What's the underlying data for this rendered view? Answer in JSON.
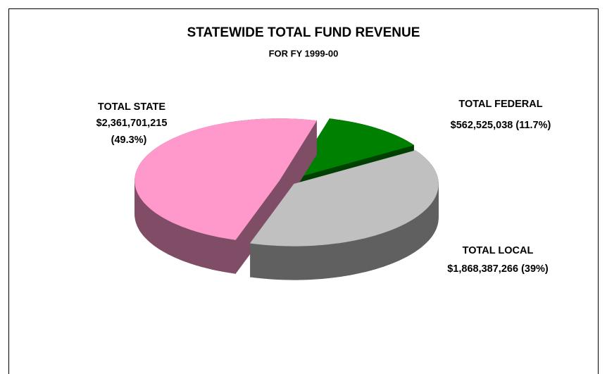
{
  "chart_data": {
    "type": "pie3d",
    "title": "STATEWIDE TOTAL FUND REVENUE",
    "subtitle": "FOR FY 1999-00",
    "categories": [
      "TOTAL FEDERAL",
      "TOTAL LOCAL",
      "TOTAL STATE"
    ],
    "values": [
      562525038,
      1868387266,
      2361701215
    ],
    "value_labels": [
      "$562,525,038",
      "$1,868,387,266",
      "$2,361,701,215"
    ],
    "percents": [
      11.7,
      39,
      49.3
    ],
    "percent_labels": [
      "(11.7%)",
      "(39%)",
      "(49.3%)"
    ],
    "colors": [
      "#008000",
      "#c0c0c0",
      "#ff99cc"
    ]
  }
}
